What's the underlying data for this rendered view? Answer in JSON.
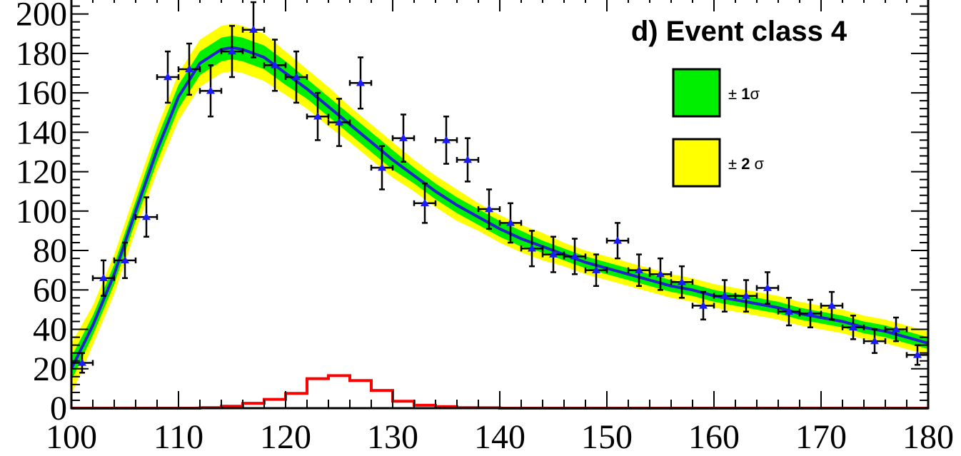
{
  "chart_data": {
    "type": "scatter",
    "title": "d) Event class 4",
    "xlim": [
      100,
      180
    ],
    "ylim": [
      0,
      210
    ],
    "x_ticks": [
      100,
      110,
      120,
      130,
      140,
      150,
      160,
      170,
      180
    ],
    "y_ticks": [
      0,
      20,
      40,
      60,
      80,
      100,
      120,
      140,
      160,
      180,
      200
    ],
    "grid": false,
    "legend_position": "top-right",
    "legend": [
      {
        "label_prefix": "± ",
        "label_bold": "1",
        "label_suffix": "σ",
        "color": "#00ee00"
      },
      {
        "label_prefix": "± ",
        "label_bold": "2",
        "label_suffix": " σ",
        "color": "#ffff00"
      }
    ],
    "colors": {
      "data_marker": "#1a1aff",
      "fit": "#2222cc",
      "band1": "#00ee00",
      "band2": "#ffff00",
      "signal": "#ff0000"
    },
    "series": [
      {
        "kind": "data",
        "x_err": 1,
        "points": [
          {
            "x": 101,
            "y": 23,
            "err": 5
          },
          {
            "x": 103,
            "y": 66,
            "err": 9
          },
          {
            "x": 105,
            "y": 75,
            "err": 9
          },
          {
            "x": 107,
            "y": 97,
            "err": 10
          },
          {
            "x": 109,
            "y": 168,
            "err": 13
          },
          {
            "x": 111,
            "y": 172,
            "err": 13
          },
          {
            "x": 113,
            "y": 161,
            "err": 13
          },
          {
            "x": 115,
            "y": 181,
            "err": 13
          },
          {
            "x": 117,
            "y": 192,
            "err": 14
          },
          {
            "x": 119,
            "y": 174,
            "err": 13
          },
          {
            "x": 121,
            "y": 168,
            "err": 13
          },
          {
            "x": 123,
            "y": 148,
            "err": 12
          },
          {
            "x": 125,
            "y": 145,
            "err": 12
          },
          {
            "x": 127,
            "y": 165,
            "err": 13
          },
          {
            "x": 129,
            "y": 122,
            "err": 11
          },
          {
            "x": 131,
            "y": 137,
            "err": 12
          },
          {
            "x": 133,
            "y": 104,
            "err": 10
          },
          {
            "x": 135,
            "y": 136,
            "err": 12
          },
          {
            "x": 137,
            "y": 126,
            "err": 11
          },
          {
            "x": 139,
            "y": 101,
            "err": 10
          },
          {
            "x": 141,
            "y": 94,
            "err": 10
          },
          {
            "x": 143,
            "y": 81,
            "err": 9
          },
          {
            "x": 145,
            "y": 78,
            "err": 9
          },
          {
            "x": 147,
            "y": 77,
            "err": 9
          },
          {
            "x": 149,
            "y": 70,
            "err": 8
          },
          {
            "x": 151,
            "y": 85,
            "err": 9
          },
          {
            "x": 153,
            "y": 70,
            "err": 8
          },
          {
            "x": 155,
            "y": 68,
            "err": 8
          },
          {
            "x": 157,
            "y": 64,
            "err": 8
          },
          {
            "x": 159,
            "y": 52,
            "err": 7
          },
          {
            "x": 161,
            "y": 57,
            "err": 8
          },
          {
            "x": 163,
            "y": 57,
            "err": 8
          },
          {
            "x": 165,
            "y": 61,
            "err": 8
          },
          {
            "x": 167,
            "y": 49,
            "err": 7
          },
          {
            "x": 169,
            "y": 48,
            "err": 7
          },
          {
            "x": 171,
            "y": 52,
            "err": 7
          },
          {
            "x": 173,
            "y": 41,
            "err": 6
          },
          {
            "x": 175,
            "y": 34,
            "err": 6
          },
          {
            "x": 177,
            "y": 40,
            "err": 6
          },
          {
            "x": 179,
            "y": 27,
            "err": 5
          }
        ]
      },
      {
        "kind": "fit",
        "x": [
          100,
          102,
          104,
          106,
          108,
          110,
          112,
          114,
          115,
          116,
          118,
          120,
          122,
          124,
          126,
          128,
          130,
          132,
          134,
          136,
          138,
          140,
          142,
          144,
          146,
          148,
          150,
          152,
          154,
          156,
          158,
          160,
          162,
          164,
          166,
          168,
          170,
          172,
          174,
          176,
          178,
          180
        ],
        "y": [
          20,
          42,
          68,
          100,
          131,
          158,
          175,
          182,
          183,
          182,
          178,
          170,
          162,
          153,
          144,
          135,
          126,
          118,
          110,
          103,
          97,
          91,
          86,
          82,
          78,
          74,
          71,
          68,
          65,
          62,
          60,
          57,
          55,
          53,
          51,
          48,
          46,
          44,
          41,
          39,
          36,
          33
        ],
        "band1_halfwidth": [
          6,
          5,
          5,
          5,
          6,
          6,
          6,
          6,
          6,
          6,
          6,
          6,
          5,
          5,
          5,
          5,
          5,
          4,
          4,
          4,
          4,
          4,
          4,
          3,
          3,
          3,
          3,
          3,
          3,
          3,
          3,
          3,
          3,
          3,
          3,
          3,
          3,
          3,
          3,
          3,
          3,
          3
        ],
        "band2_halfwidth": [
          13,
          10,
          10,
          10,
          11,
          12,
          12,
          12,
          12,
          12,
          12,
          11,
          10,
          10,
          9,
          9,
          9,
          8,
          8,
          8,
          7,
          7,
          7,
          7,
          6,
          6,
          6,
          6,
          6,
          6,
          6,
          6,
          6,
          6,
          6,
          6,
          6,
          6,
          6,
          6,
          6,
          6
        ]
      },
      {
        "kind": "signal_histogram",
        "bin_width": 2,
        "bins_x": [
          100,
          102,
          104,
          106,
          108,
          110,
          112,
          114,
          116,
          118,
          120,
          122,
          124,
          126,
          128,
          130,
          132,
          134,
          136,
          138,
          140,
          142,
          144,
          146,
          148,
          150,
          152,
          154,
          156,
          158,
          160,
          162,
          164,
          166,
          168,
          170,
          172,
          174,
          176,
          178
        ],
        "values": [
          0,
          0,
          0,
          0,
          0,
          0,
          0.3,
          1,
          2.5,
          4.5,
          7.5,
          15,
          16.5,
          14,
          9,
          3.5,
          1.5,
          0.8,
          0.3,
          0.2,
          0,
          0,
          0,
          0,
          0,
          0,
          0,
          0,
          0,
          0,
          0,
          0,
          0,
          0,
          0,
          0,
          0,
          0,
          0,
          0
        ]
      }
    ]
  }
}
